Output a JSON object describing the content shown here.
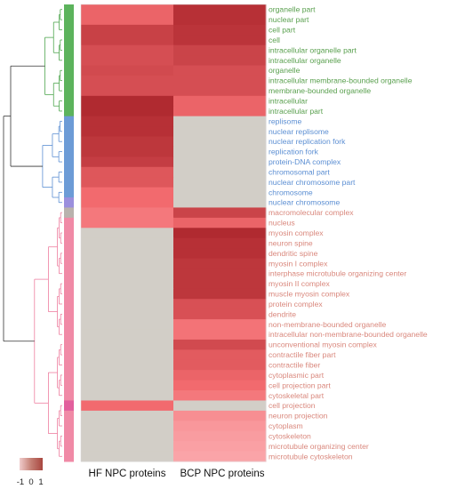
{
  "chart_data": {
    "type": "heatmap",
    "columns": [
      "HF NPC proteins",
      "BCP NPC proteins"
    ],
    "color_scale": {
      "labels": [
        "-1",
        "0",
        "1"
      ],
      "low": "#f0cccc",
      "mid": "#c47f74",
      "high": "#a8463f"
    },
    "na_color": "#d2cec7",
    "cluster_colors": {
      "green": "#5cb35c",
      "blue": "#6c9bd6",
      "purple": "#9b8fdd",
      "gray": "#b9b2ad",
      "pink": "#f08aa6",
      "magenta": "#e25f9d"
    },
    "label_colors": {
      "green": "#5aa04f",
      "blue": "#5c8fd3",
      "pink": "#d9877c"
    },
    "rows": [
      {
        "label": "organelle part",
        "values": [
          0.55,
          0.95
        ],
        "cluster": "green"
      },
      {
        "label": "nuclear part",
        "values": [
          0.55,
          0.95
        ],
        "cluster": "green"
      },
      {
        "label": "cell part",
        "values": [
          0.82,
          0.92
        ],
        "cluster": "green"
      },
      {
        "label": "cell",
        "values": [
          0.82,
          0.92
        ],
        "cluster": "green"
      },
      {
        "label": "intracellular organelle part",
        "values": [
          0.72,
          0.8
        ],
        "cluster": "green"
      },
      {
        "label": "intracellular organelle",
        "values": [
          0.72,
          0.8
        ],
        "cluster": "green"
      },
      {
        "label": "organelle",
        "values": [
          0.75,
          0.72
        ],
        "cluster": "green"
      },
      {
        "label": "intracellular membrane-bounded organelle",
        "values": [
          0.72,
          0.72
        ],
        "cluster": "green"
      },
      {
        "label": "membrane-bounded organelle",
        "values": [
          0.72,
          0.72
        ],
        "cluster": "green"
      },
      {
        "label": "intracellular",
        "values": [
          1.0,
          0.55
        ],
        "cluster": "green"
      },
      {
        "label": "intracellular part",
        "values": [
          1.0,
          0.55
        ],
        "cluster": "green"
      },
      {
        "label": "replisome",
        "values": [
          0.95,
          null
        ],
        "cluster": "blue"
      },
      {
        "label": "nuclear replisome",
        "values": [
          0.95,
          null
        ],
        "cluster": "blue"
      },
      {
        "label": "nuclear replication fork",
        "values": [
          0.9,
          null
        ],
        "cluster": "blue"
      },
      {
        "label": "replication fork",
        "values": [
          0.9,
          null
        ],
        "cluster": "blue"
      },
      {
        "label": "protein-DNA complex",
        "values": [
          0.85,
          null
        ],
        "cluster": "blue"
      },
      {
        "label": "chromosomal part",
        "values": [
          0.65,
          null
        ],
        "cluster": "blue"
      },
      {
        "label": "nuclear chromosome part",
        "values": [
          0.65,
          null
        ],
        "cluster": "blue"
      },
      {
        "label": "chromosome",
        "values": [
          0.5,
          null
        ],
        "cluster": "blue"
      },
      {
        "label": "nuclear chromosome",
        "values": [
          0.5,
          null
        ],
        "cluster": "purple"
      },
      {
        "label": "macromolecular complex",
        "values": [
          0.42,
          0.8
        ],
        "cluster": "gray"
      },
      {
        "label": "nucleus",
        "values": [
          0.42,
          0.55
        ],
        "cluster": "pink"
      },
      {
        "label": "myosin complex",
        "values": [
          null,
          1.0
        ],
        "cluster": "pink"
      },
      {
        "label": "neuron spine",
        "values": [
          null,
          0.95
        ],
        "cluster": "pink"
      },
      {
        "label": "dendritic spine",
        "values": [
          null,
          0.95
        ],
        "cluster": "pink"
      },
      {
        "label": "myosin I complex",
        "values": [
          null,
          0.9
        ],
        "cluster": "pink"
      },
      {
        "label": "interphase microtubule organizing center",
        "values": [
          null,
          0.9
        ],
        "cluster": "pink"
      },
      {
        "label": "myosin II complex",
        "values": [
          null,
          0.9
        ],
        "cluster": "pink"
      },
      {
        "label": "muscle myosin complex",
        "values": [
          null,
          0.9
        ],
        "cluster": "pink"
      },
      {
        "label": "protein complex",
        "values": [
          null,
          0.7
        ],
        "cluster": "pink"
      },
      {
        "label": "dendrite",
        "values": [
          null,
          0.7
        ],
        "cluster": "pink"
      },
      {
        "label": "non-membrane-bounded organelle",
        "values": [
          null,
          0.45
        ],
        "cluster": "pink"
      },
      {
        "label": "intracellular non-membrane-bounded organelle",
        "values": [
          null,
          0.45
        ],
        "cluster": "pink"
      },
      {
        "label": "unconventional myosin complex",
        "values": [
          null,
          0.75
        ],
        "cluster": "pink"
      },
      {
        "label": "contractile fiber part",
        "values": [
          null,
          0.62
        ],
        "cluster": "pink"
      },
      {
        "label": "contractile fiber",
        "values": [
          null,
          0.62
        ],
        "cluster": "pink"
      },
      {
        "label": "cytoplasmic part",
        "values": [
          null,
          0.55
        ],
        "cluster": "pink"
      },
      {
        "label": "cell projection part",
        "values": [
          null,
          0.5
        ],
        "cluster": "pink"
      },
      {
        "label": "cytoskeletal part",
        "values": [
          null,
          0.42
        ],
        "cluster": "pink"
      },
      {
        "label": "cell projection",
        "values": [
          0.5,
          null
        ],
        "cluster": "magenta"
      },
      {
        "label": "neuron projection",
        "values": [
          null,
          0.3
        ],
        "cluster": "pink"
      },
      {
        "label": "cytoplasm",
        "values": [
          null,
          0.25
        ],
        "cluster": "pink"
      },
      {
        "label": "cytoskeleton",
        "values": [
          null,
          0.22
        ],
        "cluster": "pink"
      },
      {
        "label": "microtubule organizing center",
        "values": [
          null,
          0.2
        ],
        "cluster": "pink"
      },
      {
        "label": "microtubule cytoskeleton",
        "values": [
          null,
          0.18
        ],
        "cluster": "pink"
      }
    ]
  }
}
